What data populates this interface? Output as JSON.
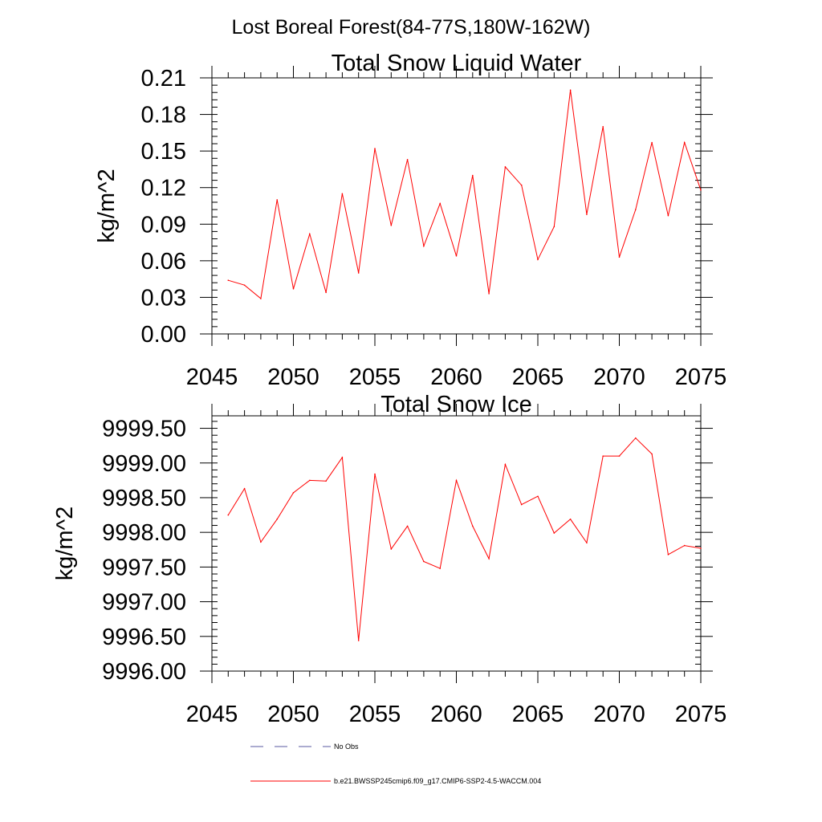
{
  "page": {
    "title": "Lost Boreal Forest(84-77S,180W-162W)"
  },
  "chart_data": [
    {
      "type": "line",
      "title": "Total Snow Liquid Water",
      "ylabel": "kg/m^2",
      "xlabel": "",
      "xlim": [
        2045,
        2075
      ],
      "ylim": [
        0.0,
        0.21
      ],
      "xticks": [
        "2045",
        "2050",
        "2055",
        "2060",
        "2065",
        "2070",
        "2075"
      ],
      "yticks": [
        "0.00",
        "0.03",
        "0.06",
        "0.09",
        "0.12",
        "0.15",
        "0.18",
        "0.21"
      ],
      "x": [
        2046,
        2047,
        2048,
        2049,
        2050,
        2051,
        2052,
        2053,
        2054,
        2055,
        2056,
        2057,
        2058,
        2059,
        2060,
        2061,
        2062,
        2063,
        2064,
        2065,
        2066,
        2067,
        2068,
        2069,
        2070,
        2071,
        2072,
        2073,
        2074,
        2075
      ],
      "series": [
        {
          "name": "b.e21.BWSSP245cmip6.f09_g17.CMIP6-SSP2-4.5-WACCM.004",
          "color": "#ff0000",
          "values": [
            0.044,
            0.04,
            0.029,
            0.11,
            0.037,
            0.082,
            0.034,
            0.115,
            0.05,
            0.152,
            0.089,
            0.143,
            0.072,
            0.107,
            0.064,
            0.13,
            0.033,
            0.137,
            0.122,
            0.061,
            0.088,
            0.2,
            0.098,
            0.17,
            0.063,
            0.102,
            0.157,
            0.097,
            0.157,
            0.118
          ]
        }
      ]
    },
    {
      "type": "line",
      "title": "Total Snow Ice",
      "ylabel": "kg/m^2",
      "xlabel": "",
      "xlim": [
        2045,
        2075
      ],
      "ylim": [
        9996.0,
        9999.68
      ],
      "xticks": [
        "2045",
        "2050",
        "2055",
        "2060",
        "2065",
        "2070",
        "2075"
      ],
      "yticks": [
        "9996.00",
        "9996.50",
        "9997.00",
        "9997.50",
        "9998.00",
        "9998.50",
        "9999.00",
        "9999.50"
      ],
      "x": [
        2046,
        2047,
        2048,
        2049,
        2050,
        2051,
        2052,
        2053,
        2054,
        2055,
        2056,
        2057,
        2058,
        2059,
        2060,
        2061,
        2062,
        2063,
        2064,
        2065,
        2066,
        2067,
        2068,
        2069,
        2070,
        2071,
        2072,
        2073,
        2074,
        2075
      ],
      "series": [
        {
          "name": "b.e21.BWSSP245cmip6.f09_g17.CMIP6-SSP2-4.5-WACCM.004",
          "color": "#ff0000",
          "values": [
            9998.25,
            9998.63,
            9997.86,
            9998.19,
            9998.57,
            9998.75,
            9998.74,
            9999.08,
            9996.44,
            9998.84,
            9997.76,
            9998.09,
            9997.58,
            9997.48,
            9998.75,
            9998.09,
            9997.62,
            9998.98,
            9998.4,
            9998.52,
            9997.99,
            9998.19,
            9997.85,
            9999.1,
            9999.1,
            9999.36,
            9999.13,
            9997.68,
            9997.81,
            9997.77
          ]
        }
      ]
    }
  ],
  "legend": {
    "items": [
      {
        "label": "No Obs",
        "color": "#5a5aa0",
        "style": "dashed"
      },
      {
        "label": "b.e21.BWSSP245cmip6.f09_g17.CMIP6-SSP2-4.5-WACCM.004",
        "color": "#ff0000",
        "style": "solid"
      }
    ]
  }
}
